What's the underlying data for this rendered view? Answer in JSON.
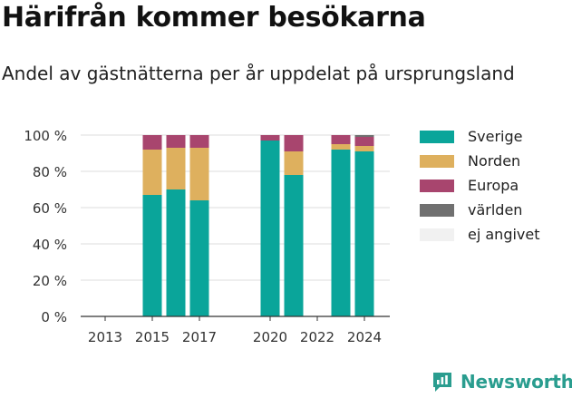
{
  "header": {
    "title": "Härifrån kommer besökarna",
    "subtitle": "Andel av gästnätterna per år uppdelat på ursprungsland"
  },
  "chart_data": {
    "type": "bar",
    "stacked": true,
    "categories": [
      "2013",
      "2014",
      "2015",
      "2016",
      "2017",
      "2018",
      "2019",
      "2020",
      "2021",
      "2022",
      "2023",
      "2024"
    ],
    "x_ticks": [
      "2013",
      "2015",
      "2017",
      "2020",
      "2022",
      "2024"
    ],
    "y_ticks": [
      "0 %",
      "20 %",
      "40 %",
      "60 %",
      "80 %",
      "100 %"
    ],
    "ylim": [
      0,
      100
    ],
    "grid": true,
    "legend_position": "right",
    "series": [
      {
        "name": "Sverige",
        "color": "#0aa59a",
        "values": [
          null,
          null,
          67,
          70,
          64,
          null,
          null,
          97,
          78,
          null,
          92,
          91
        ]
      },
      {
        "name": "Norden",
        "color": "#deb05e",
        "values": [
          null,
          null,
          25,
          23,
          29,
          null,
          null,
          0,
          13,
          null,
          3,
          3
        ]
      },
      {
        "name": "Europa",
        "color": "#a8456e",
        "values": [
          null,
          null,
          8,
          7,
          7,
          null,
          null,
          3,
          9,
          null,
          5,
          5
        ]
      },
      {
        "name": "världen",
        "color": "#707070",
        "values": [
          null,
          null,
          0,
          0,
          0,
          null,
          null,
          0,
          0,
          null,
          0,
          1
        ]
      },
      {
        "name": "ej angivet",
        "color": "#f1f1f1",
        "values": [
          null,
          null,
          0,
          0,
          0,
          null,
          null,
          0,
          0,
          null,
          0,
          0
        ]
      }
    ]
  },
  "brand": {
    "name": "Newsworthy",
    "color": "#2a9d8f",
    "icon": "newsworthy-logo-icon"
  }
}
